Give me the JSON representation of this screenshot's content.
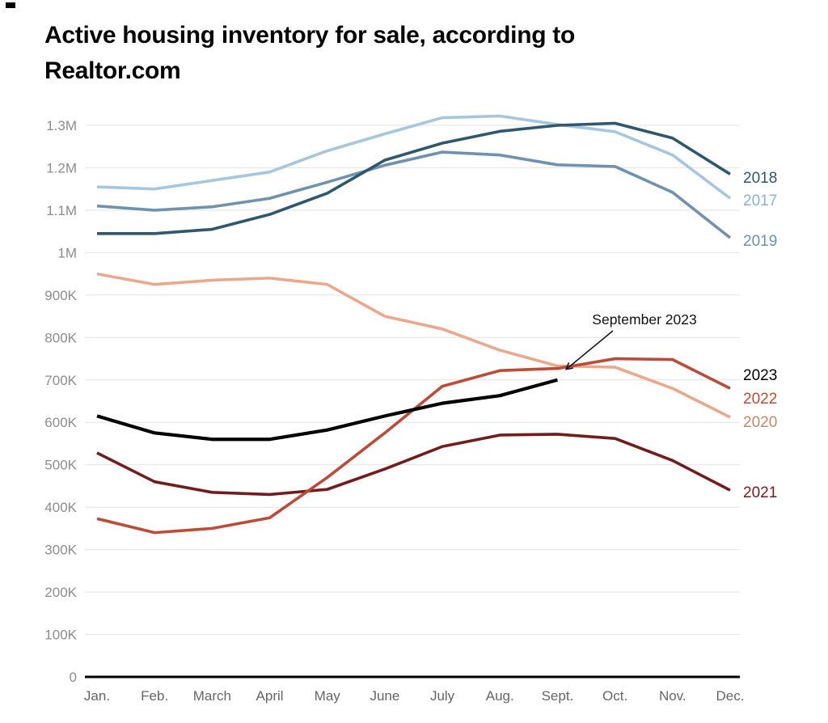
{
  "page": {
    "title": "Active housing inventory for sale, according to Realtor.com"
  },
  "chart_data": {
    "type": "line",
    "title": "Active housing inventory for sale, according to Realtor.com",
    "xlabel": "",
    "ylabel": "",
    "grid": true,
    "legend_position": "right-inline-year-labels",
    "x_categories": [
      "Jan.",
      "Feb.",
      "March",
      "April",
      "May",
      "June",
      "July",
      "Aug.",
      "Sept.",
      "Oct.",
      "Nov.",
      "Dec."
    ],
    "y_axis": {
      "ylim_thousands": [
        0,
        1300
      ],
      "ticks": [
        {
          "label": "1.3M",
          "value_thousands": 1300
        },
        {
          "label": "1.2M",
          "value_thousands": 1200
        },
        {
          "label": "1.1M",
          "value_thousands": 1100
        },
        {
          "label": "1M",
          "value_thousands": 1000
        },
        {
          "label": "900K",
          "value_thousands": 900
        },
        {
          "label": "800K",
          "value_thousands": 800
        },
        {
          "label": "700K",
          "value_thousands": 700
        },
        {
          "label": "600K",
          "value_thousands": 600
        },
        {
          "label": "500K",
          "value_thousands": 500
        },
        {
          "label": "400K",
          "value_thousands": 400
        },
        {
          "label": "300K",
          "value_thousands": 300
        },
        {
          "label": "200K",
          "value_thousands": 200
        },
        {
          "label": "100K",
          "value_thousands": 100
        },
        {
          "label": "0",
          "value_thousands": 0
        }
      ]
    },
    "series": [
      {
        "name": "2017",
        "color": "#A7C6E0",
        "label_color": "#8FB2D1",
        "values_thousands": [
          1155,
          1150,
          1170,
          1190,
          1240,
          1280,
          1318,
          1322,
          1302,
          1285,
          1230,
          1128
        ]
      },
      {
        "name": "2019",
        "color": "#6E92AF",
        "label_color": "#6E92AF",
        "values_thousands": [
          1110,
          1100,
          1108,
          1128,
          1166,
          1206,
          1237,
          1230,
          1207,
          1203,
          1142,
          1035
        ]
      },
      {
        "name": "2018",
        "color": "#2F5870",
        "label_color": "#2F5870",
        "values_thousands": [
          1045,
          1045,
          1055,
          1090,
          1140,
          1218,
          1258,
          1286,
          1300,
          1305,
          1270,
          1185
        ]
      },
      {
        "name": "2020",
        "color": "#ECA88B",
        "label_color": "#BD8A70",
        "values_thousands": [
          950,
          925,
          935,
          940,
          925,
          850,
          820,
          770,
          733,
          730,
          680,
          612
        ]
      },
      {
        "name": "2021",
        "color": "#721D1C",
        "label_color": "#721D1C",
        "values_thousands": [
          528,
          460,
          435,
          430,
          442,
          490,
          543,
          570,
          572,
          562,
          510,
          440
        ]
      },
      {
        "name": "2022",
        "color": "#BC4B38",
        "label_color": "#BC4B38",
        "values_thousands": [
          373,
          340,
          350,
          375,
          470,
          575,
          685,
          722,
          727,
          750,
          748,
          680
        ]
      },
      {
        "name": "2023",
        "color": "#000000",
        "label_color": "#000000",
        "values_thousands": [
          615,
          575,
          560,
          560,
          582,
          615,
          645,
          663,
          700
        ]
      }
    ],
    "annotation": {
      "text": "September 2023",
      "series": "2023",
      "month": "Sept.",
      "value_thousands": 700
    },
    "style_colors": {
      "gridline": "#E4E4E4",
      "axis_line": "#000000",
      "tick_label": "#8D8D8D",
      "month_label": "#666666"
    }
  }
}
